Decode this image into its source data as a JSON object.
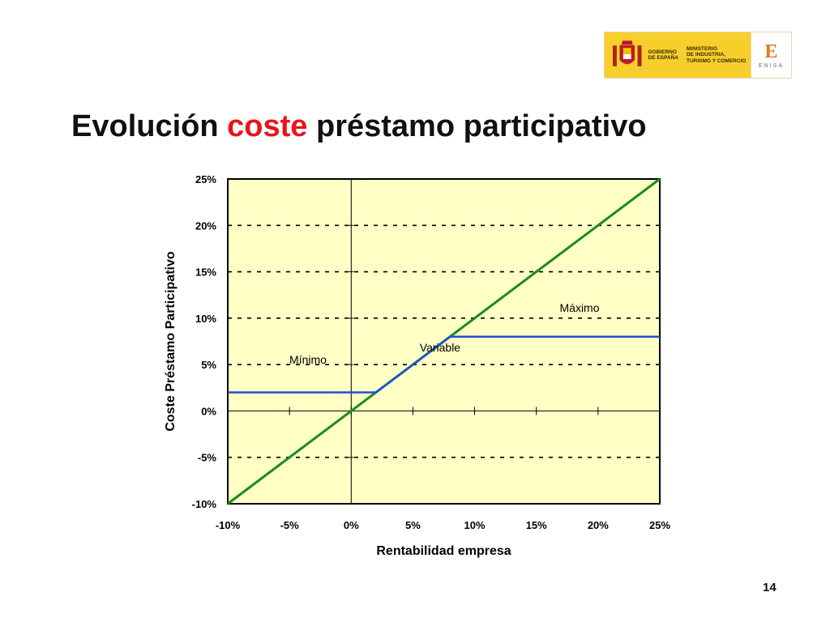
{
  "header": {
    "gov_label": "GOBIERNO\nDE ESPAÑA",
    "ministry_label": "MINISTERIO\nDE INDUSTRIA,\nTURISMO Y COMERCIO",
    "enisa_letter": "E",
    "enisa_word": "ENISA"
  },
  "slide": {
    "title_part1": "Evolución ",
    "title_highlight": "coste",
    "title_part2": " préstamo participativo",
    "page_number": "14"
  },
  "colors": {
    "plot_background": "#ffffc6",
    "green_line": "#1a8c1a",
    "blue_line": "#1f4fd8",
    "title_highlight": "#e8141c"
  },
  "chart_data": {
    "type": "line",
    "xlabel": "Rentabilidad empresa",
    "ylabel": "Coste Préstamo Participativo",
    "xlim": [
      -10,
      25
    ],
    "ylim": [
      -10,
      25
    ],
    "x_ticks": [
      -10,
      -5,
      0,
      5,
      10,
      15,
      20,
      25
    ],
    "y_ticks": [
      -10,
      -5,
      0,
      5,
      10,
      15,
      20,
      25
    ],
    "x_tick_labels": [
      "-10%",
      "-5%",
      "0%",
      "5%",
      "10%",
      "15%",
      "20%",
      "25%"
    ],
    "y_tick_labels": [
      "-10%",
      "-5%",
      "0%",
      "5%",
      "10%",
      "15%",
      "20%",
      "25%"
    ],
    "grid": "horizontal dashed",
    "series": [
      {
        "color": "#1a8c1a",
        "x": [
          -10,
          25
        ],
        "y": [
          -10,
          25
        ]
      },
      {
        "color": "#1f4fd8",
        "x": [
          -10,
          2,
          8,
          25
        ],
        "y": [
          2,
          2,
          8,
          8
        ]
      }
    ],
    "annotations": [
      {
        "text": "Mínimo",
        "x": -3.5,
        "y": 5.1
      },
      {
        "text": "Variable",
        "x": 7.2,
        "y": 6.4
      },
      {
        "text": "Máximo",
        "x": 18.5,
        "y": 10.7
      }
    ]
  }
}
